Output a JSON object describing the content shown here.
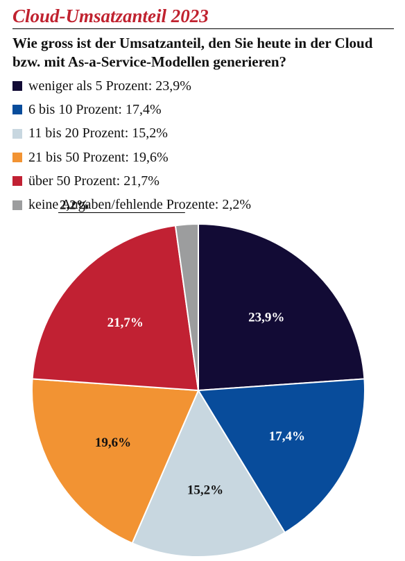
{
  "title": "Cloud-Umsatzanteil 2023",
  "question": "Wie gross ist der Umsatzanteil, den Sie heute in der Cloud bzw. mit As-a-Service-Modellen generieren?",
  "chart_data": {
    "type": "pie",
    "title": "Cloud-Umsatzanteil 2023",
    "subtitle": "Wie gross ist der Umsatzanteil, den Sie heute in der Cloud bzw. mit As-a-Service-Modellen generieren?",
    "slices": [
      {
        "name": "weniger als 5 Prozent",
        "value": 23.9,
        "value_label": "23,9%",
        "legend": "weniger als 5 Prozent: 23,9%",
        "color": "#120b35",
        "label_color": "#ffffff"
      },
      {
        "name": "6 bis 10 Prozent",
        "value": 17.4,
        "value_label": "17,4%",
        "legend": "6 bis 10 Prozent: 17,4%",
        "color": "#084c9b",
        "label_color": "#ffffff"
      },
      {
        "name": "11 bis 20 Prozent",
        "value": 15.2,
        "value_label": "15,2%",
        "legend": "11 bis 20 Prozent: 15,2%",
        "color": "#c8d7e0",
        "label_color": "#111111"
      },
      {
        "name": "21 bis 50 Prozent",
        "value": 19.6,
        "value_label": "19,6%",
        "legend": "21 bis 50 Prozent: 19,6%",
        "color": "#f29333",
        "label_color": "#111111"
      },
      {
        "name": "über 50 Prozent",
        "value": 21.7,
        "value_label": "21,7%",
        "legend": "über 50 Prozent: 21,7%",
        "color": "#c12133",
        "label_color": "#ffffff"
      },
      {
        "name": "keine Angaben/fehlende Prozente",
        "value": 2.2,
        "value_label": "2,2%",
        "legend": "keine Angaben/fehlende Prozente: 2,2%",
        "color": "#9c9d9e",
        "label_color": "#111111"
      }
    ],
    "legend_position": "top-left",
    "start_angle": "12 o'clock",
    "direction": "clockwise"
  }
}
